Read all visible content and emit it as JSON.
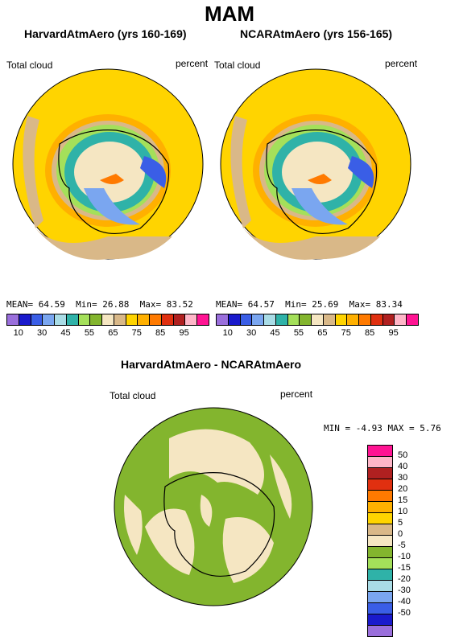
{
  "figure_title": "MAM",
  "panels": [
    {
      "title": "HarvardAtmAero (yrs 160-169)",
      "left_label": "Total cloud",
      "right_label": "percent",
      "mean_label": "MEAN=",
      "mean": "64.59",
      "min_label": "Min=",
      "min": "26.88",
      "max_label": "Max=",
      "max": "83.52"
    },
    {
      "title": "NCARAtmAero (yrs 156-165)",
      "left_label": "Total cloud",
      "right_label": "percent",
      "mean_label": "MEAN=",
      "mean": "64.57",
      "min_label": "Min=",
      "min": "25.69",
      "max_label": "Max=",
      "max": "83.34"
    }
  ],
  "diff_panel": {
    "title": "HarvardAtmAero - NCARAtmAero",
    "left_label": "Total cloud",
    "right_label": "percent",
    "min_label": "MIN =",
    "min": "-4.93",
    "max_label": "MAX =",
    "max": "5.76"
  },
  "colorbar": {
    "colors": [
      "#9a6fdc",
      "#1a1acc",
      "#3a5ee6",
      "#7aa6f0",
      "#a9dce6",
      "#2fb2a8",
      "#a4e05a",
      "#83b52e",
      "#f5e6c2",
      "#d9b888",
      "#ffd400",
      "#ffb000",
      "#ff7a00",
      "#e03010",
      "#b02020",
      "#ffb6c8",
      "#ff1493"
    ],
    "ticks": [
      "10",
      "30",
      "45",
      "55",
      "65",
      "75",
      "85",
      "95"
    ]
  },
  "diff_colorbar": {
    "colors": [
      "#ff1493",
      "#ffb6c8",
      "#b02020",
      "#e03010",
      "#ff7a00",
      "#ffb000",
      "#ffd400",
      "#d9b888",
      "#f5e6c2",
      "#83b52e",
      "#a4e05a",
      "#2fb2a8",
      "#a9dce6",
      "#7aa6f0",
      "#3a5ee6",
      "#1a1acc",
      "#9a6fdc"
    ],
    "labels": [
      "50",
      "40",
      "30",
      "20",
      "15",
      "10",
      "5",
      "0",
      "-5",
      "-10",
      "-15",
      "-20",
      "-30",
      "-40",
      "-50"
    ]
  }
}
